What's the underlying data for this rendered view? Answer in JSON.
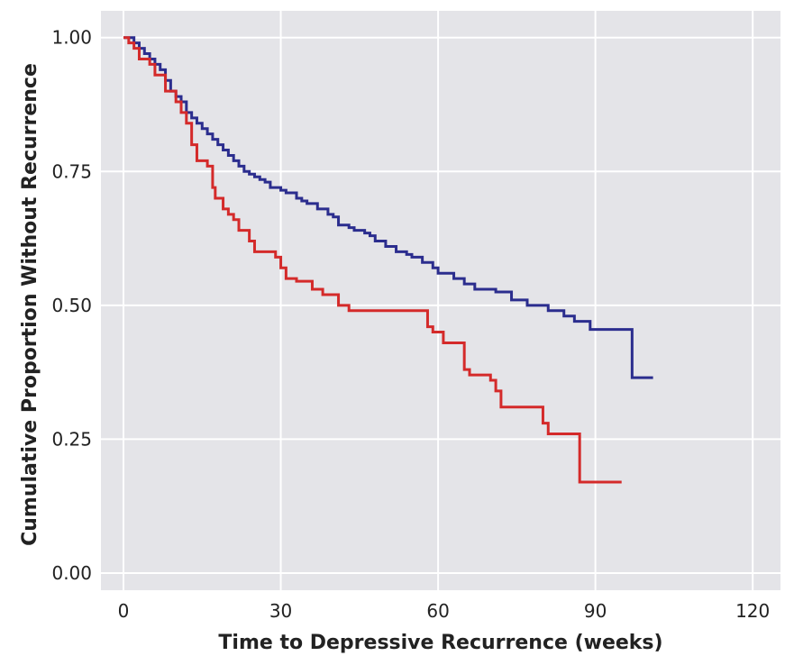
{
  "chart_data": {
    "type": "line",
    "step": "post",
    "x_label": "Time to Depressive Recurrence (weeks)",
    "y_label": "Cumulative Proportion Without Recurrence",
    "xlim": [
      -4.3,
      125.3
    ],
    "ylim": [
      -0.032,
      1.05
    ],
    "xticks": [
      0,
      30,
      60,
      90,
      120
    ],
    "yticks": [
      {
        "value": 0,
        "label": "0.00"
      },
      {
        "value": 0.25,
        "label": "0.25"
      },
      {
        "value": 0.5,
        "label": "0.50"
      },
      {
        "value": 0.75,
        "label": "0.75"
      },
      {
        "value": 1,
        "label": "1.00"
      }
    ],
    "grid": true,
    "background": "#e4e4e8",
    "series": [
      {
        "color": "#2b2d8e",
        "x": [
          0,
          2,
          3,
          4,
          5,
          6,
          7,
          8,
          9,
          10,
          11,
          12,
          13,
          14,
          15,
          16,
          17,
          18,
          19,
          20,
          21,
          22,
          23,
          24,
          25,
          26,
          27,
          28,
          30,
          31,
          33,
          34,
          35,
          37,
          39,
          40,
          41,
          43,
          44,
          46,
          47,
          48,
          50,
          52,
          54,
          55,
          57,
          59,
          60,
          63,
          65,
          67,
          71,
          74,
          77,
          81,
          84,
          86,
          89,
          97,
          101
        ],
        "values": [
          1.0,
          0.99,
          0.98,
          0.97,
          0.96,
          0.95,
          0.94,
          0.92,
          0.9,
          0.89,
          0.88,
          0.86,
          0.85,
          0.84,
          0.83,
          0.82,
          0.81,
          0.8,
          0.79,
          0.78,
          0.77,
          0.76,
          0.75,
          0.745,
          0.74,
          0.735,
          0.73,
          0.72,
          0.715,
          0.71,
          0.7,
          0.695,
          0.69,
          0.68,
          0.67,
          0.665,
          0.65,
          0.645,
          0.64,
          0.635,
          0.63,
          0.62,
          0.61,
          0.6,
          0.595,
          0.59,
          0.58,
          0.57,
          0.56,
          0.55,
          0.54,
          0.53,
          0.525,
          0.51,
          0.5,
          0.49,
          0.48,
          0.47,
          0.455,
          0.365,
          0.365
        ]
      },
      {
        "color": "#d42a2a",
        "x": [
          0,
          1,
          2,
          3,
          5,
          6,
          8,
          10,
          11,
          12,
          13,
          14,
          16,
          17,
          17.5,
          19,
          20,
          21,
          22,
          24,
          25,
          29,
          30,
          31,
          33,
          36,
          38,
          41,
          43,
          58,
          59,
          61,
          65,
          66,
          70,
          71,
          72,
          80,
          81,
          87,
          95
        ],
        "values": [
          1.0,
          0.99,
          0.98,
          0.96,
          0.95,
          0.93,
          0.9,
          0.88,
          0.86,
          0.84,
          0.8,
          0.77,
          0.76,
          0.72,
          0.7,
          0.68,
          0.67,
          0.66,
          0.64,
          0.62,
          0.6,
          0.59,
          0.57,
          0.55,
          0.545,
          0.53,
          0.52,
          0.5,
          0.49,
          0.46,
          0.45,
          0.43,
          0.38,
          0.37,
          0.36,
          0.34,
          0.31,
          0.28,
          0.26,
          0.17,
          0.17
        ]
      }
    ]
  }
}
